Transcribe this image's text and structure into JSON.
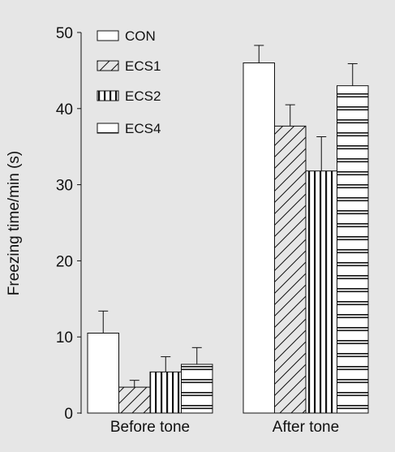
{
  "chart_data": {
    "type": "bar",
    "title": "",
    "xlabel": "",
    "ylabel": "Freezing time/min (s)",
    "ylim": [
      0,
      50
    ],
    "yticks": [
      0,
      10,
      20,
      30,
      40,
      50
    ],
    "grid": false,
    "legend_position": "top-left",
    "categories": [
      "Before tone",
      "After tone"
    ],
    "series": [
      {
        "name": "CON",
        "pattern": "none",
        "values": [
          10.5,
          46.0
        ],
        "errors": [
          2.9,
          2.3
        ]
      },
      {
        "name": "ECS1",
        "pattern": "diagonal",
        "values": [
          3.4,
          37.7
        ],
        "errors": [
          0.9,
          2.8
        ]
      },
      {
        "name": "ECS2",
        "pattern": "vertical",
        "values": [
          5.4,
          31.8
        ],
        "errors": [
          2.0,
          4.5
        ]
      },
      {
        "name": "ECS4",
        "pattern": "horizontal",
        "values": [
          6.4,
          43.0
        ],
        "errors": [
          2.2,
          2.9
        ]
      }
    ],
    "colors": {
      "background": "#e6e6e6",
      "bar_fill": "#ffffff",
      "ink": "#111111"
    }
  }
}
